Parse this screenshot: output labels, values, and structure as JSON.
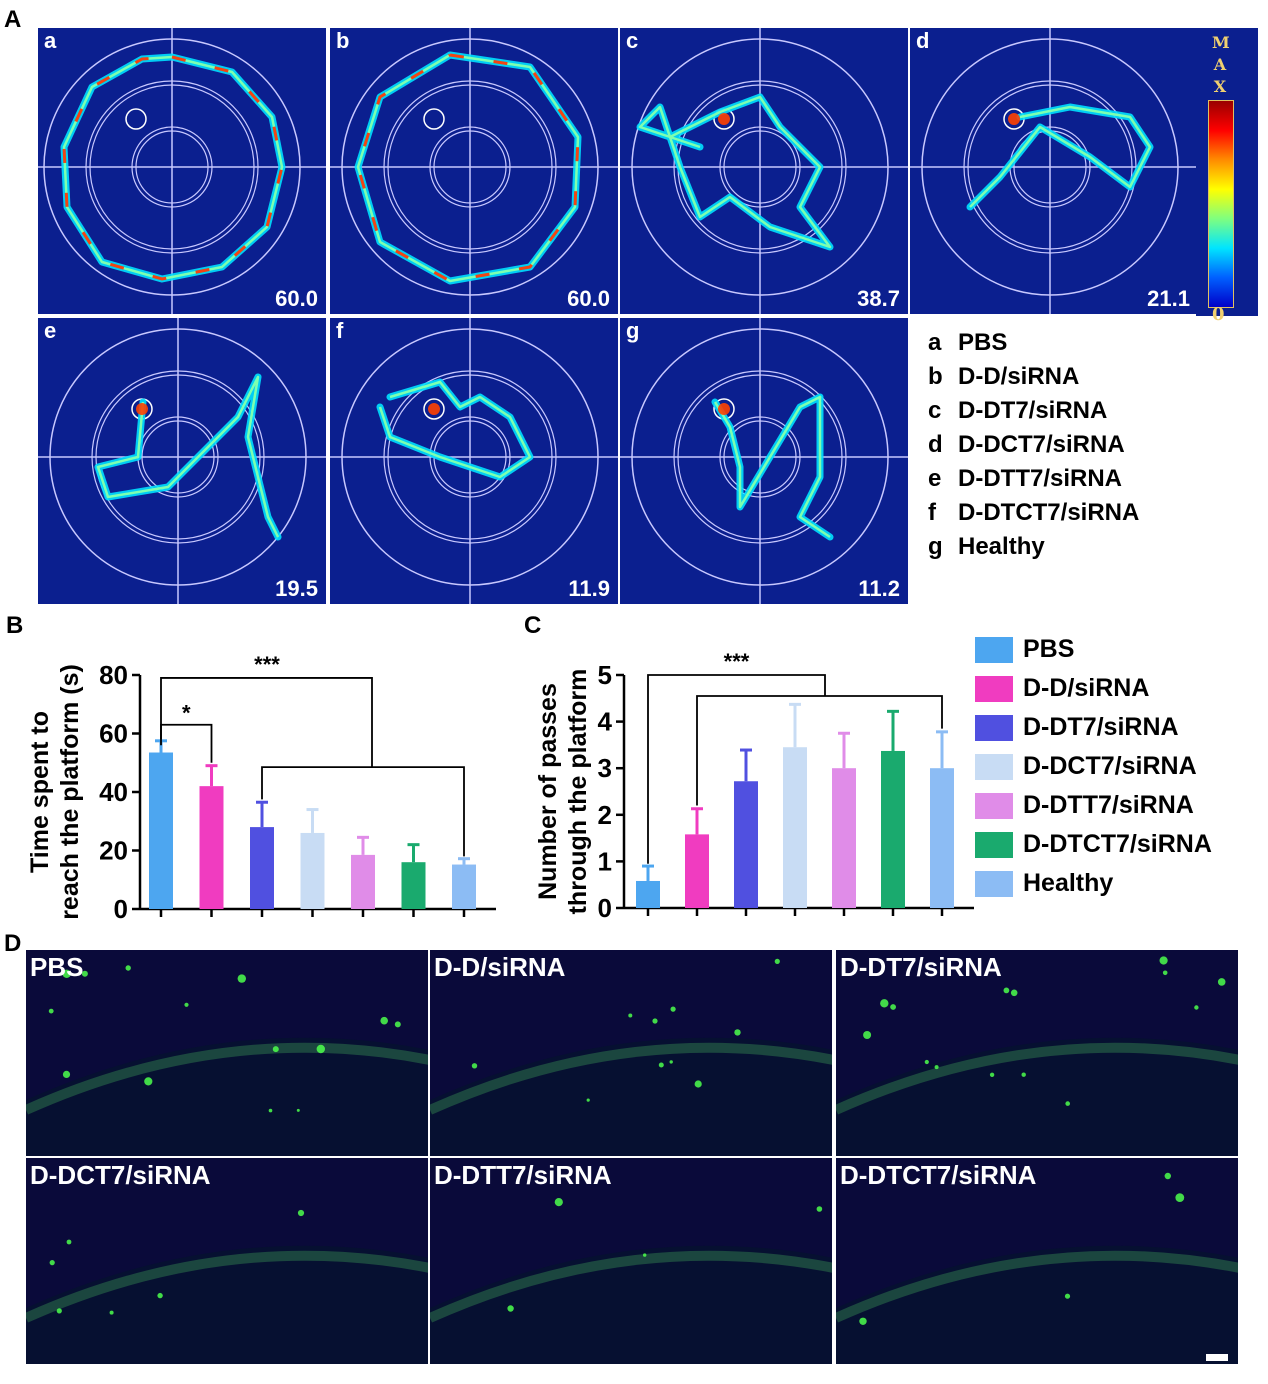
{
  "panel_labels": {
    "A": "A",
    "B": "B",
    "C": "C",
    "D": "D"
  },
  "trackplots": [
    {
      "letter": "a",
      "value": "60.0"
    },
    {
      "letter": "b",
      "value": "60.0"
    },
    {
      "letter": "c",
      "value": "38.7"
    },
    {
      "letter": "d",
      "value": "21.1"
    },
    {
      "letter": "e",
      "value": "19.5"
    },
    {
      "letter": "f",
      "value": "11.9"
    },
    {
      "letter": "g",
      "value": "11.2"
    }
  ],
  "colorbar": {
    "max_label": "MAX",
    "min_label": "0",
    "colors": [
      "#9a0000",
      "#ff0000",
      "#ff8c00",
      "#ffff00",
      "#00e5ff",
      "#0000c8"
    ]
  },
  "legend_a": [
    {
      "key": "a",
      "name": "PBS"
    },
    {
      "key": "b",
      "name": "D-D/siRNA"
    },
    {
      "key": "c",
      "name": "D-DT7/siRNA"
    },
    {
      "key": "d",
      "name": "D-DCT7/siRNA"
    },
    {
      "key": "e",
      "name": "D-DTT7/siRNA"
    },
    {
      "key": "f",
      "name": "D-DTCT7/siRNA"
    },
    {
      "key": "g",
      "name": "Healthy"
    }
  ],
  "legend_b": [
    {
      "name": "PBS",
      "color": "#4da6f0"
    },
    {
      "name": "D-D/siRNA",
      "color": "#f03cc0"
    },
    {
      "name": "D-DT7/siRNA",
      "color": "#5050e0"
    },
    {
      "name": "D-DCT7/siRNA",
      "color": "#c8dcf4"
    },
    {
      "name": "D-DTT7/siRNA",
      "color": "#e08ce8"
    },
    {
      "name": "D-DTCT7/siRNA",
      "color": "#1aaa6e"
    },
    {
      "name": "Healthy",
      "color": "#8cbcf4"
    }
  ],
  "chart_data": [
    {
      "type": "bar",
      "ylabel_lines": [
        "Time spent to",
        "reach the platform (s)"
      ],
      "ylim": [
        0,
        80
      ],
      "yticks": [
        "0",
        "20",
        "40",
        "60",
        "80"
      ],
      "series": [
        {
          "values": [
            53.5,
            42,
            28,
            26,
            18.5,
            16,
            15.2
          ],
          "errors": [
            4,
            7,
            8.5,
            8,
            6,
            6,
            2
          ]
        }
      ],
      "colors": [
        "#4da6f0",
        "#f03cc0",
        "#5050e0",
        "#c8dcf4",
        "#e08ce8",
        "#1aaa6e",
        "#8cbcf4"
      ],
      "annotations": [
        "*",
        "***"
      ]
    },
    {
      "type": "bar",
      "ylabel_lines": [
        "Number of passes",
        "through the platform"
      ],
      "ylim": [
        0,
        5
      ],
      "yticks": [
        "0",
        "1",
        "2",
        "3",
        "4",
        "5"
      ],
      "series": [
        {
          "values": [
            0.58,
            1.58,
            2.72,
            3.45,
            3.0,
            3.37,
            3.0
          ],
          "errors": [
            0.32,
            0.55,
            0.67,
            0.92,
            0.75,
            0.85,
            0.78
          ]
        }
      ],
      "colors": [
        "#4da6f0",
        "#f03cc0",
        "#5050e0",
        "#c8dcf4",
        "#e08ce8",
        "#1aaa6e",
        "#8cbcf4"
      ],
      "annotations": [
        "***"
      ]
    }
  ],
  "fluor_panels": [
    "PBS",
    "D-D/siRNA",
    "D-DT7/siRNA",
    "D-DCT7/siRNA",
    "D-DTT7/siRNA",
    "D-DTCT7/siRNA"
  ]
}
